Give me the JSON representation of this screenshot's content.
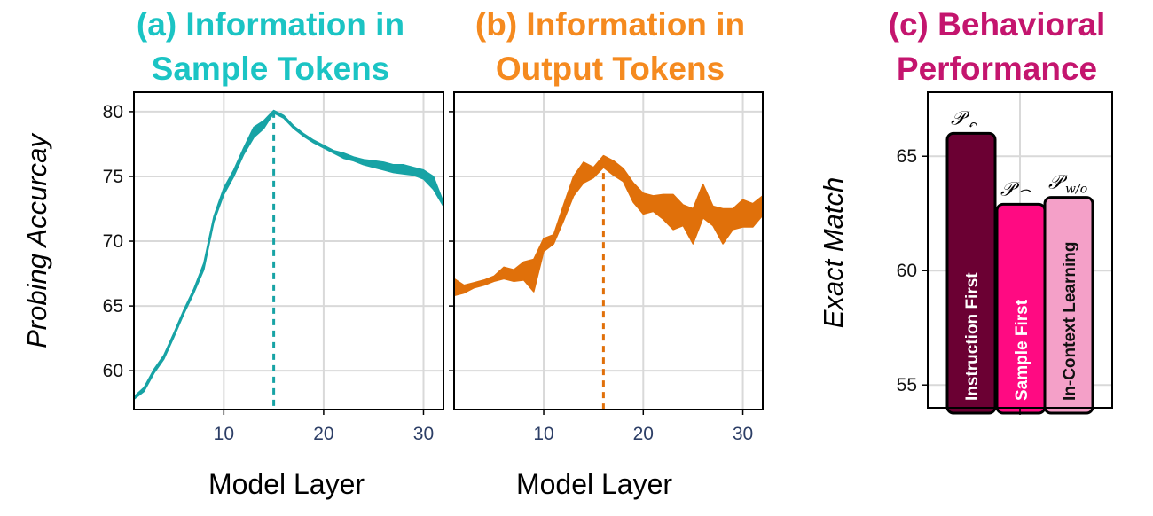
{
  "chart_data": [
    {
      "type": "area",
      "title": "(a) Information in Sample Tokens",
      "title_lines": [
        "(a) Information in",
        "Sample Tokens"
      ],
      "title_color": "#1bc4c4",
      "color": "#17a3a5",
      "xlabel": "Model Layer",
      "ylabel": "Probing Accurcay",
      "xlim": [
        1,
        32
      ],
      "ylim": [
        57,
        81.5
      ],
      "xticks": [
        "10",
        "20",
        "30"
      ],
      "yticks": [
        "60",
        "65",
        "70",
        "75",
        "80"
      ],
      "grid": true,
      "marker_layer": 15,
      "x": [
        1,
        2,
        3,
        4,
        5,
        6,
        7,
        8,
        9,
        10,
        11,
        12,
        13,
        14,
        15,
        16,
        17,
        18,
        19,
        20,
        21,
        22,
        23,
        24,
        25,
        26,
        27,
        28,
        29,
        30,
        31,
        32
      ],
      "lower": [
        57.8,
        58.4,
        59.8,
        60.9,
        62.6,
        64.4,
        66.0,
        67.8,
        71.5,
        73.6,
        75.0,
        76.7,
        78.0,
        78.7,
        79.9,
        79.5,
        78.7,
        78.1,
        77.6,
        77.2,
        76.8,
        76.4,
        76.2,
        75.9,
        75.7,
        75.5,
        75.3,
        75.2,
        75.1,
        74.8,
        74.0,
        72.7
      ],
      "upper": [
        58.0,
        58.7,
        60.1,
        61.2,
        62.9,
        64.7,
        66.3,
        68.3,
        71.9,
        74.1,
        75.5,
        77.2,
        78.8,
        79.3,
        80.1,
        79.7,
        78.9,
        78.3,
        77.8,
        77.4,
        77.0,
        76.8,
        76.5,
        76.3,
        76.2,
        76.1,
        75.9,
        75.9,
        75.7,
        75.5,
        75.0,
        73.0
      ]
    },
    {
      "type": "area",
      "title": "(b) Information in Output Tokens",
      "title_lines": [
        "(b) Information in",
        "Output Tokens"
      ],
      "title_color": "#f58a1f",
      "color": "#e0700a",
      "xlabel": "Model Layer",
      "xlim": [
        1,
        32
      ],
      "ylim": [
        57,
        81.5
      ],
      "xticks": [
        "10",
        "20",
        "30"
      ],
      "grid": true,
      "marker_layer": 16,
      "x": [
        1,
        2,
        3,
        4,
        5,
        6,
        7,
        8,
        9,
        10,
        11,
        12,
        13,
        14,
        15,
        16,
        17,
        18,
        19,
        20,
        21,
        22,
        23,
        24,
        25,
        26,
        27,
        28,
        29,
        30,
        31,
        32
      ],
      "lower": [
        65.8,
        66.0,
        66.4,
        66.6,
        66.9,
        67.1,
        66.9,
        67.0,
        66.1,
        69.2,
        69.8,
        71.6,
        73.5,
        74.5,
        74.9,
        75.7,
        75.1,
        74.6,
        73.0,
        72.1,
        72.3,
        71.7,
        70.9,
        71.2,
        69.8,
        71.8,
        71.2,
        69.8,
        70.9,
        71.1,
        71.1,
        72.0
      ],
      "upper": [
        67.1,
        66.6,
        66.8,
        67.0,
        67.3,
        68.0,
        67.8,
        68.4,
        68.6,
        70.2,
        70.5,
        72.8,
        75.0,
        76.1,
        75.7,
        76.6,
        76.2,
        75.6,
        74.5,
        73.7,
        73.5,
        73.6,
        73.6,
        72.8,
        72.5,
        74.4,
        72.7,
        72.5,
        72.5,
        73.2,
        72.9,
        73.5
      ]
    },
    {
      "type": "bar",
      "title": "(c) Behavioral Performance",
      "title_lines": [
        "(c) Behavioral",
        "Performance"
      ],
      "title_color": "#c4156e",
      "ylabel": "Exact Match",
      "ylim": [
        54,
        67.8
      ],
      "yticks": [
        "55",
        "60",
        "65"
      ],
      "grid": true,
      "bars": [
        {
          "label": "Instruction First",
          "value": 66.0,
          "color": "#6b0033",
          "text_dark": false,
          "symbol": "𝒫",
          "sub": "↶"
        },
        {
          "label": "Sample First",
          "value": 62.9,
          "color": "#ff0a82",
          "text_dark": false,
          "symbol": "𝒫",
          "sub": "⌒"
        },
        {
          "label": "In-Context Learning",
          "value": 63.2,
          "color": "#f4a0c8",
          "text_dark": true,
          "symbol": "𝒫",
          "sub": "w/o"
        }
      ]
    }
  ]
}
